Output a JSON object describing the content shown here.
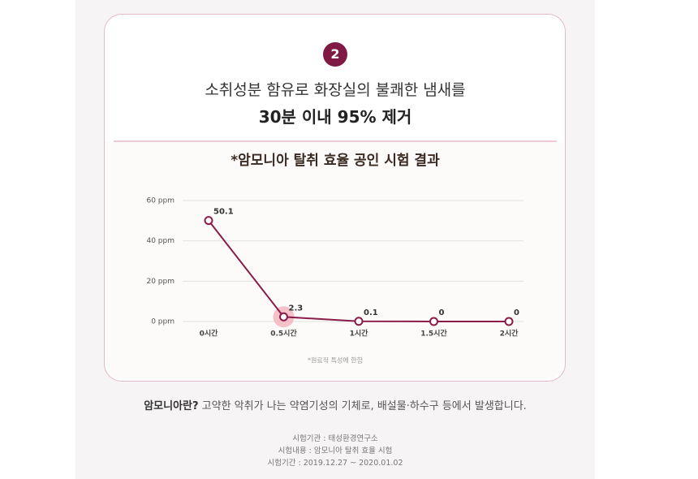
{
  "badge": "2",
  "headline": {
    "line1": "소취성분 함유로 화장실의 불쾌한 냄새를",
    "line2": "30분 이내 95% 제거"
  },
  "chart_data": {
    "type": "line",
    "title": "*암모니아 탈취 효율 공인 시험 결과",
    "categories": [
      "0시간",
      "0.5시간",
      "1시간",
      "1.5시간",
      "2시간"
    ],
    "values": [
      50.1,
      2.3,
      0.1,
      0,
      0
    ],
    "color": "#8a1c4a",
    "ylim": [
      0,
      60
    ],
    "yticks": [
      {
        "value": 0,
        "label": "0 ppm"
      },
      {
        "value": 20,
        "label": "20 ppm"
      },
      {
        "value": 40,
        "label": "40 ppm"
      },
      {
        "value": 60,
        "label": "60 ppm"
      }
    ],
    "grid": true,
    "note": "*원료적 특성에 한함"
  },
  "footer": {
    "term": "암모니아란?",
    "definition": " 고약한 악취가 나는 약염기성의 기체로, 배설물·하수구 등에서 발생합니다.",
    "details": [
      "시험기관 : 태성환경연구소",
      "시험내용 : 암모니아 탈취 효율 시험",
      "시험기간 : 2019.12.27 ~ 2020.01.02"
    ]
  }
}
